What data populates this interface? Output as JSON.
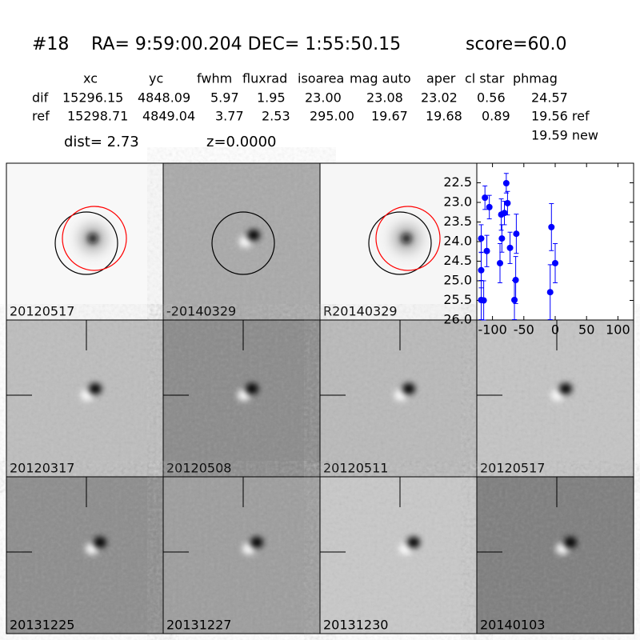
{
  "header": {
    "id": "#18",
    "coords": "RA= 9:59:00.204 DEC= 1:55:50.15",
    "score": "score=60.0"
  },
  "table": {
    "columns": [
      "xc",
      "yc",
      "fwhm",
      "fluxrad",
      "isoarea",
      "mag auto",
      "aper",
      "cl star",
      "phmag"
    ],
    "rows": [
      {
        "label": "dif",
        "values": [
          "15296.15",
          "4848.09",
          "5.97",
          "1.95",
          "23.00",
          "23.08",
          "23.02",
          "0.56",
          "24.57"
        ]
      },
      {
        "label": "ref",
        "values": [
          "15298.71",
          "4849.04",
          "3.77",
          "2.53",
          "295.00",
          "19.67",
          "19.68",
          "0.89",
          "19.56 ref"
        ]
      }
    ],
    "extra": "19.59 new",
    "dist": "dist=  2.73",
    "z": "z=0.0000"
  },
  "panels": [
    {
      "label": "20120517"
    },
    {
      "label": "-20140329"
    },
    {
      "label": "R20140329"
    },
    {
      "label": "20120317"
    },
    {
      "label": "20120508"
    },
    {
      "label": "20120511"
    },
    {
      "label": "20120517",
      "label_color": "#ff0000"
    },
    {
      "label": "20131225"
    },
    {
      "label": "20131227"
    },
    {
      "label": "20131230"
    },
    {
      "label": "20140103"
    }
  ],
  "chart_data": {
    "type": "scatter",
    "color": "#0000ff",
    "x": [
      -118,
      -118,
      -118,
      -114,
      -112,
      -109,
      -105,
      -88,
      -86,
      -85,
      -81,
      -78,
      -76,
      -72,
      -65,
      -63,
      -62,
      -8,
      -6,
      0
    ],
    "values": [
      25.49,
      24.73,
      23.92,
      25.5,
      22.88,
      24.24,
      23.12,
      24.55,
      23.31,
      23.92,
      23.27,
      22.51,
      23.02,
      24.16,
      25.49,
      24.98,
      23.8,
      25.29,
      23.63,
      24.55
    ],
    "errors": [
      0.5,
      0.45,
      0.35,
      0.5,
      0.3,
      0.4,
      0.3,
      0.5,
      0.4,
      0.35,
      0.3,
      0.25,
      0.3,
      0.4,
      0.5,
      0.6,
      0.5,
      0.7,
      0.6,
      0.5
    ],
    "xlim": [
      -125,
      125
    ],
    "ylim": [
      26.0,
      22.0
    ],
    "xticks": [
      -100,
      -50,
      0,
      50,
      100
    ],
    "yticks": [
      {
        "value": 22.5,
        "label": "22.5"
      },
      {
        "value": 23.0,
        "label": "23.0"
      },
      {
        "value": 23.5,
        "label": "23.5"
      },
      {
        "value": 24.0,
        "label": "24.0"
      },
      {
        "value": 24.5,
        "label": "24.5"
      },
      {
        "value": 25.0,
        "label": "25.0"
      },
      {
        "value": 25.5,
        "label": "25.5"
      },
      {
        "value": 26.0,
        "label": "26.0"
      }
    ]
  }
}
